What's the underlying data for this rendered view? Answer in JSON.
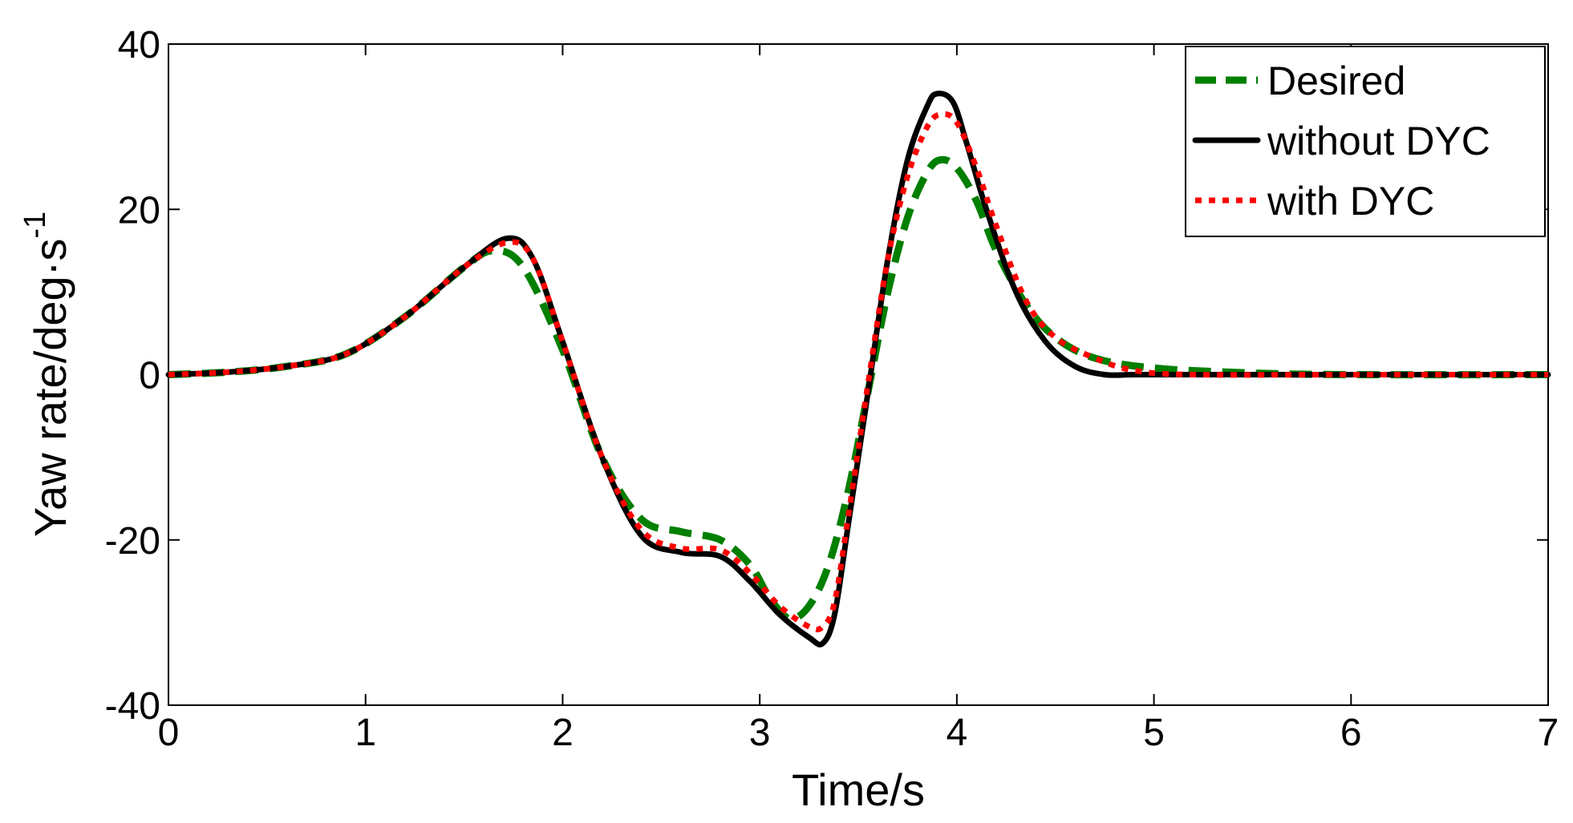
{
  "chart_data": {
    "type": "line",
    "title": "",
    "xlabel": "Time/s",
    "ylabel": {
      "main": "Yaw rate/deg·s",
      "superscript": "-1"
    },
    "xlim": [
      0,
      7
    ],
    "ylim": [
      -40,
      40
    ],
    "xticks": [
      "0",
      "1",
      "2",
      "3",
      "4",
      "5",
      "6",
      "7"
    ],
    "yticks": [
      "-40",
      "-20",
      "0",
      "20",
      "40"
    ],
    "grid": false,
    "legend_position": "top-right",
    "series": [
      {
        "name": "Desired",
        "color": "#007f00",
        "style": "dashed",
        "x": [
          0,
          0.3,
          0.6,
          0.9,
          1.2,
          1.5,
          1.65,
          1.8,
          2.0,
          2.2,
          2.4,
          2.6,
          2.8,
          2.95,
          3.05,
          3.15,
          3.25,
          3.35,
          3.45,
          3.55,
          3.65,
          3.75,
          3.85,
          3.92,
          4.0,
          4.1,
          4.2,
          4.35,
          4.5,
          4.7,
          5.0,
          5.5,
          6.0,
          7.0
        ],
        "y": [
          0,
          0.3,
          1.0,
          2.5,
          7.0,
          13.0,
          15.0,
          13.0,
          3.0,
          -10.0,
          -17.5,
          -19.0,
          -20.0,
          -23.0,
          -27.0,
          -29.5,
          -28.0,
          -23.0,
          -14.0,
          -2.0,
          10.0,
          19.0,
          24.5,
          26.0,
          25.0,
          21.0,
          15.0,
          8.5,
          4.5,
          2.0,
          0.8,
          0.2,
          0.0,
          0.0
        ]
      },
      {
        "name": "without DYC",
        "color": "#000000",
        "style": "solid",
        "x": [
          0,
          0.3,
          0.6,
          0.9,
          1.2,
          1.5,
          1.72,
          1.85,
          2.0,
          2.2,
          2.4,
          2.6,
          2.8,
          2.95,
          3.1,
          3.25,
          3.32,
          3.38,
          3.45,
          3.55,
          3.65,
          3.75,
          3.85,
          3.9,
          3.98,
          4.05,
          4.15,
          4.3,
          4.45,
          4.6,
          4.75,
          4.9,
          5.2,
          6.0,
          7.0
        ],
        "y": [
          0,
          0.3,
          1.0,
          2.5,
          7.0,
          13.0,
          16.5,
          14.0,
          4.0,
          -10.0,
          -19.5,
          -21.5,
          -22.0,
          -25.0,
          -29.0,
          -31.8,
          -32.5,
          -29.0,
          -18.0,
          -2.0,
          14.0,
          26.0,
          32.5,
          34.0,
          33.0,
          28.0,
          20.0,
          10.0,
          4.0,
          1.0,
          0.0,
          0.0,
          0.0,
          0.0,
          0.0
        ]
      },
      {
        "name": "with DYC",
        "color": "#ff0000",
        "style": "dotted",
        "x": [
          0,
          0.3,
          0.6,
          0.9,
          1.2,
          1.5,
          1.72,
          1.85,
          2.0,
          2.2,
          2.4,
          2.6,
          2.8,
          2.95,
          3.1,
          3.25,
          3.32,
          3.38,
          3.45,
          3.55,
          3.65,
          3.75,
          3.85,
          3.92,
          4.0,
          4.1,
          4.2,
          4.35,
          4.5,
          4.7,
          4.9,
          5.2,
          6.0,
          7.0
        ],
        "y": [
          0,
          0.3,
          1.0,
          2.5,
          7.0,
          13.0,
          16.0,
          14.0,
          4.0,
          -10.0,
          -18.8,
          -21.0,
          -21.2,
          -24.0,
          -28.0,
          -30.5,
          -30.5,
          -27.5,
          -17.0,
          -1.0,
          14.0,
          24.0,
          30.0,
          31.5,
          30.5,
          25.0,
          18.0,
          9.0,
          4.5,
          2.0,
          0.5,
          0.0,
          0.0,
          0.0
        ]
      }
    ]
  }
}
